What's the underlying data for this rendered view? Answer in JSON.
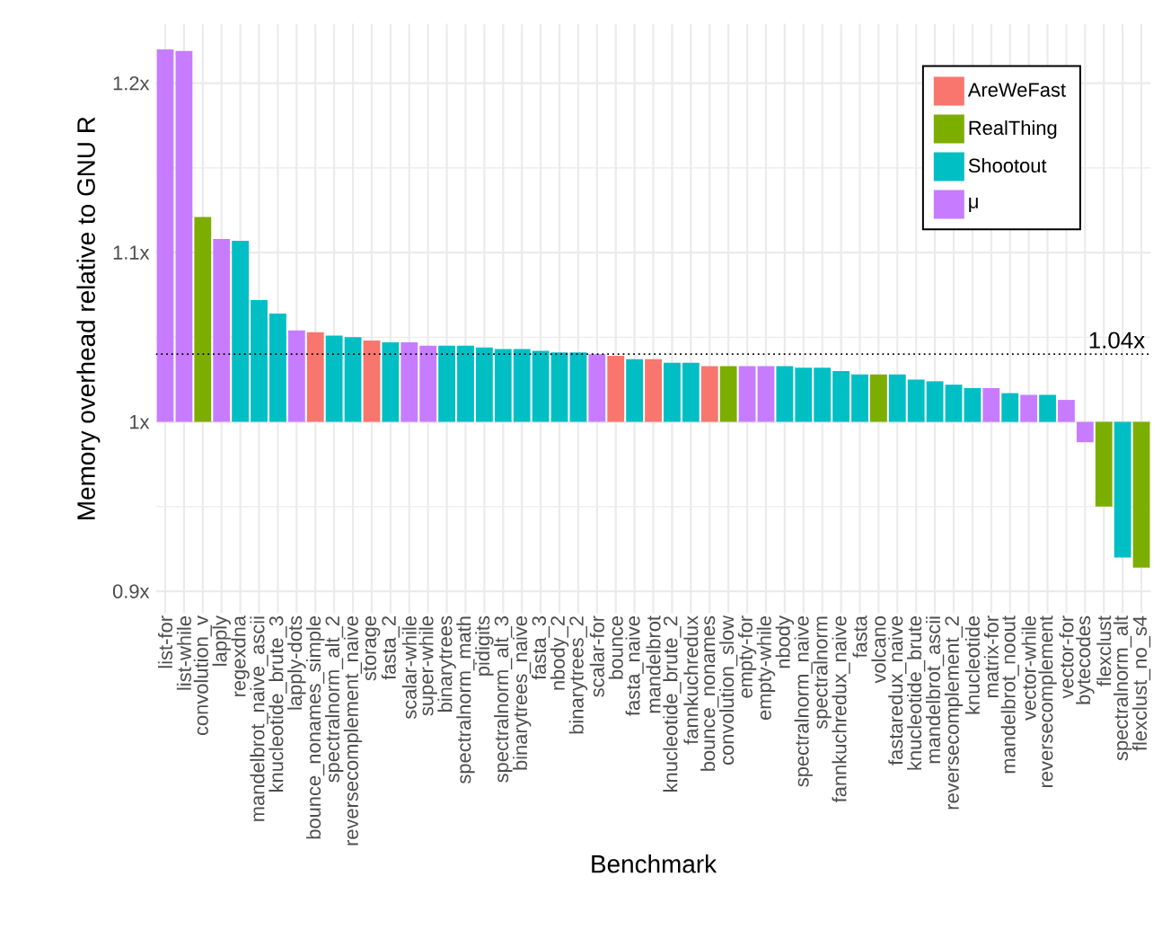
{
  "chart_data": {
    "type": "bar",
    "xlabel": "Benchmark",
    "ylabel": "Memory overhead relative to GNU R",
    "categories": [
      "list-for",
      "list-while",
      "convolution_v",
      "lapply",
      "regexdna",
      "mandelbrot_naive_ascii",
      "knucleotide_brute_3",
      "lapply-dots",
      "bounce_nonames_simple",
      "spectralnorm_alt_2",
      "reversecomplement_naive",
      "storage",
      "fasta_2",
      "scalar-while",
      "super-while",
      "binarytrees",
      "spectralnorm_math",
      "pidigits",
      "spectralnorm_alt_3",
      "binarytrees_naive",
      "fasta_3",
      "nbody_2",
      "binarytrees_2",
      "scalar-for",
      "bounce",
      "fasta_naive",
      "mandelbrot",
      "knucleotide_brute_2",
      "fannkuchredux",
      "bounce_nonames",
      "convolution_slow",
      "empty-for",
      "empty-while",
      "nbody",
      "spectralnorm_naive",
      "spectralnorm",
      "fannkuchredux_naive",
      "fasta",
      "volcano",
      "fastaredux_naive",
      "knucleotide_brute",
      "mandelbrot_ascii",
      "reversecomplement_2",
      "knucleotide",
      "matrix-for",
      "mandelbrot_noout",
      "vector-while",
      "reversecomplement",
      "vector-for",
      "bytecodes",
      "flexclust",
      "spectralnorm_alt",
      "flexclust_no_s4"
    ],
    "series": [
      {
        "name": "AreWeFast",
        "color": "#f8766d",
        "values": [
          null,
          null,
          null,
          null,
          null,
          null,
          null,
          null,
          0.053,
          null,
          null,
          0.048,
          null,
          null,
          null,
          null,
          null,
          null,
          null,
          null,
          null,
          null,
          null,
          null,
          0.039,
          null,
          0.037,
          null,
          null,
          0.033,
          null,
          null,
          null,
          null,
          null,
          null,
          null,
          null,
          null,
          null,
          null,
          null,
          null,
          null,
          null,
          null,
          null,
          null,
          null,
          null,
          null,
          null,
          null
        ],
        "base": [
          null,
          null,
          null,
          null,
          null,
          null,
          null,
          null,
          1,
          null,
          null,
          1,
          null,
          null,
          null,
          null,
          null,
          null,
          null,
          null,
          null,
          null,
          null,
          null,
          1,
          null,
          1,
          null,
          null,
          1,
          null,
          null,
          null,
          null,
          null,
          null,
          null,
          null,
          null,
          null,
          null,
          null,
          null,
          null,
          null,
          null,
          null,
          null,
          null,
          null,
          null,
          null,
          null
        ]
      },
      {
        "name": "RealThing",
        "color": "#7cae00",
        "values": [
          null,
          null,
          0.121,
          null,
          null,
          null,
          null,
          null,
          null,
          null,
          null,
          null,
          null,
          null,
          null,
          null,
          null,
          null,
          null,
          null,
          null,
          null,
          null,
          null,
          null,
          null,
          null,
          null,
          null,
          null,
          0.033,
          null,
          null,
          null,
          null,
          null,
          null,
          null,
          0.028,
          null,
          null,
          null,
          null,
          null,
          null,
          null,
          null,
          null,
          null,
          null,
          -0.05,
          null,
          -0.086
        ],
        "base": [
          null,
          null,
          1,
          null,
          null,
          null,
          null,
          null,
          null,
          null,
          null,
          null,
          null,
          null,
          null,
          null,
          null,
          null,
          null,
          null,
          null,
          null,
          null,
          null,
          null,
          null,
          null,
          null,
          null,
          null,
          1,
          null,
          null,
          null,
          null,
          null,
          null,
          null,
          1,
          null,
          null,
          null,
          null,
          null,
          null,
          null,
          null,
          null,
          null,
          null,
          1,
          null,
          1
        ]
      },
      {
        "name": "Shootout",
        "color": "#00bfc4",
        "values": [
          null,
          null,
          null,
          null,
          0.107,
          0.072,
          0.064,
          null,
          null,
          0.051,
          0.05,
          null,
          0.047,
          null,
          null,
          0.045,
          0.045,
          0.044,
          0.043,
          0.043,
          0.042,
          0.041,
          0.041,
          null,
          null,
          0.037,
          null,
          0.035,
          0.035,
          null,
          null,
          null,
          null,
          0.033,
          0.032,
          0.032,
          0.03,
          0.028,
          null,
          0.028,
          0.025,
          0.024,
          0.022,
          0.02,
          null,
          0.017,
          null,
          0.016,
          null,
          null,
          null,
          -0.08,
          null
        ],
        "base": [
          null,
          null,
          null,
          null,
          1,
          1,
          1,
          null,
          null,
          1,
          1,
          null,
          1,
          null,
          null,
          1,
          1,
          1,
          1,
          1,
          1,
          1,
          1,
          null,
          null,
          1,
          null,
          1,
          1,
          null,
          null,
          null,
          null,
          1,
          1,
          1,
          1,
          1,
          null,
          1,
          1,
          1,
          1,
          1,
          null,
          1,
          null,
          1,
          null,
          null,
          null,
          1,
          null
        ]
      },
      {
        "name": "μ",
        "color": "#c77cff",
        "values": [
          0.22,
          0.219,
          null,
          0.108,
          null,
          null,
          null,
          0.054,
          null,
          null,
          null,
          null,
          null,
          0.047,
          0.045,
          null,
          null,
          null,
          null,
          null,
          null,
          null,
          null,
          0.04,
          null,
          null,
          null,
          null,
          null,
          null,
          null,
          0.033,
          0.033,
          null,
          null,
          null,
          null,
          null,
          null,
          null,
          null,
          null,
          null,
          null,
          0.02,
          null,
          0.016,
          null,
          0.013,
          -0.012,
          null,
          null,
          null
        ],
        "base": [
          1,
          1,
          null,
          1,
          null,
          null,
          null,
          1,
          null,
          null,
          null,
          null,
          null,
          1,
          1,
          null,
          null,
          null,
          null,
          null,
          null,
          null,
          null,
          1,
          null,
          null,
          null,
          null,
          null,
          null,
          null,
          1,
          1,
          null,
          null,
          null,
          null,
          null,
          null,
          null,
          null,
          null,
          null,
          null,
          1,
          null,
          1,
          null,
          1,
          1,
          null,
          null,
          null
        ]
      }
    ],
    "ylim": [
      0.887,
      1.235
    ],
    "yticks": [
      {
        "value": 0.9,
        "label": "0.9x"
      },
      {
        "value": 1.0,
        "label": "1x"
      },
      {
        "value": 1.1,
        "label": "1.1x"
      },
      {
        "value": 1.2,
        "label": "1.2x"
      }
    ],
    "ref_lines": [
      {
        "axis": "y",
        "value": 1.04,
        "label": "1.04x",
        "line_style": "dotted"
      }
    ],
    "grid": true,
    "legend": "top right"
  }
}
